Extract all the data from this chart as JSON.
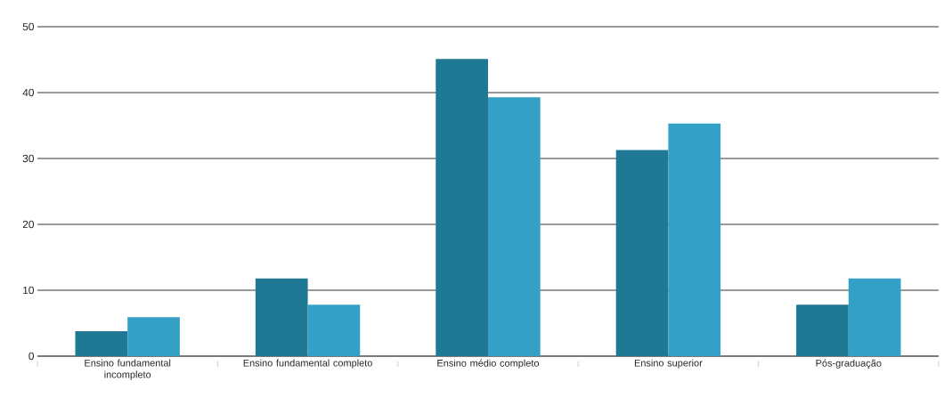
{
  "chart_data": {
    "type": "bar",
    "categories": [
      "Ensino fundamental incompleto",
      "Ensino fundamental completo",
      "Ensino médio completo",
      "Ensino superior",
      "Pós-graduação"
    ],
    "series": [
      {
        "color": "#1f7894",
        "values": [
          3.8,
          11.8,
          45.1,
          31.3,
          7.8
        ]
      },
      {
        "color": "#35a0c6",
        "values": [
          5.9,
          7.8,
          39.3,
          35.3,
          11.8
        ]
      }
    ],
    "ylim": [
      0,
      50
    ],
    "yticks": [
      0,
      10,
      20,
      30,
      40,
      50
    ],
    "grid": "y"
  }
}
